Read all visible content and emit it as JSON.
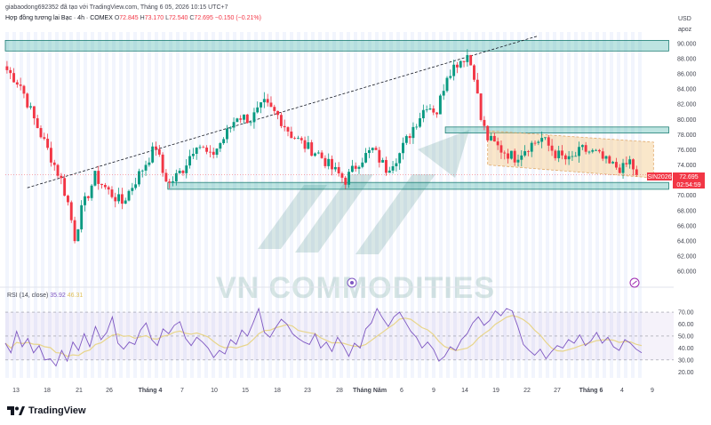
{
  "header": {
    "publisher_line": "giabaodong692352 đã tạo với TradingView.com, Tháng 6 05, 2026 10:15 UTC+7",
    "symbol_line": "Hợp đồng tương lai Bạc · 4h · COMEX",
    "ohlc": {
      "open_label": "O",
      "open": "72.845",
      "high_label": "H",
      "high": "73.170",
      "low_label": "L",
      "low": "72.540",
      "close_label": "C",
      "close": "72.695",
      "change": "−0.150 (−0.21%)"
    }
  },
  "axis": {
    "currency": "USD",
    "scale_mode": "apoz"
  },
  "last_price": {
    "symbol_tag": "SIN2026",
    "price": "72.695",
    "countdown": "02:54:59",
    "color": "#f23645"
  },
  "rsi_legend": {
    "label": "RSI (14, close)",
    "rsi_value": "35.92",
    "ma_value": "46.31"
  },
  "watermark": "VN COMMODITIES",
  "branding": "TradingView",
  "colors": {
    "up": "#089981",
    "down": "#f23645",
    "zone": "#26a69a",
    "channel": "#f5c98a",
    "rsi": "#7e57c2",
    "rsi_ma": "#e8d58a"
  },
  "chart_data": {
    "type": "candlestick",
    "timeframe": "4h",
    "price_ticks": [
      "90.000",
      "88.000",
      "86.000",
      "84.000",
      "82.000",
      "80.000",
      "78.000",
      "76.000",
      "74.000",
      "72.000",
      "70.000",
      "68.000",
      "66.000",
      "64.000",
      "62.000",
      "60.000"
    ],
    "ylim": [
      58.5,
      91.5
    ],
    "x_ticks": [
      {
        "label": "13",
        "bold": false
      },
      {
        "label": "18",
        "bold": false
      },
      {
        "label": "21",
        "bold": false
      },
      {
        "label": "26",
        "bold": false
      },
      {
        "label": "Tháng 4",
        "bold": true
      },
      {
        "label": "7",
        "bold": false
      },
      {
        "label": "10",
        "bold": false
      },
      {
        "label": "15",
        "bold": false
      },
      {
        "label": "18",
        "bold": false
      },
      {
        "label": "23",
        "bold": false
      },
      {
        "label": "28",
        "bold": false
      },
      {
        "label": "Tháng Năm",
        "bold": true
      },
      {
        "label": "6",
        "bold": false
      },
      {
        "label": "9",
        "bold": false
      },
      {
        "label": "14",
        "bold": false
      },
      {
        "label": "19",
        "bold": false
      },
      {
        "label": "22",
        "bold": false
      },
      {
        "label": "27",
        "bold": false
      },
      {
        "label": "Tháng 6",
        "bold": true
      },
      {
        "label": "4",
        "bold": false
      },
      {
        "label": "9",
        "bold": false
      }
    ],
    "close_series": [
      {
        "t": 0,
        "c": 86.5
      },
      {
        "t": 4,
        "c": 84.5
      },
      {
        "t": 8,
        "c": 80.0
      },
      {
        "t": 12,
        "c": 76.0
      },
      {
        "t": 16,
        "c": 72.0
      },
      {
        "t": 18,
        "c": 69.0
      },
      {
        "t": 20,
        "c": 64.5
      },
      {
        "t": 22,
        "c": 68.0
      },
      {
        "t": 26,
        "c": 72.5
      },
      {
        "t": 30,
        "c": 70.5
      },
      {
        "t": 34,
        "c": 69.0
      },
      {
        "t": 38,
        "c": 72.0
      },
      {
        "t": 42,
        "c": 75.0
      },
      {
        "t": 44,
        "c": 76.5
      },
      {
        "t": 46,
        "c": 73.0
      },
      {
        "t": 48,
        "c": 71.5
      },
      {
        "t": 52,
        "c": 73.5
      },
      {
        "t": 56,
        "c": 77.0
      },
      {
        "t": 60,
        "c": 75.0
      },
      {
        "t": 64,
        "c": 77.5
      },
      {
        "t": 68,
        "c": 80.5
      },
      {
        "t": 72,
        "c": 80.0
      },
      {
        "t": 76,
        "c": 82.0
      },
      {
        "t": 80,
        "c": 80.5
      },
      {
        "t": 84,
        "c": 78.0
      },
      {
        "t": 88,
        "c": 76.5
      },
      {
        "t": 92,
        "c": 75.5
      },
      {
        "t": 96,
        "c": 73.5
      },
      {
        "t": 100,
        "c": 72.0
      },
      {
        "t": 104,
        "c": 74.5
      },
      {
        "t": 108,
        "c": 76.0
      },
      {
        "t": 112,
        "c": 73.5
      },
      {
        "t": 116,
        "c": 75.5
      },
      {
        "t": 120,
        "c": 79.0
      },
      {
        "t": 124,
        "c": 82.0
      },
      {
        "t": 127,
        "c": 81.0
      },
      {
        "t": 130,
        "c": 86.0
      },
      {
        "t": 133,
        "c": 87.5
      },
      {
        "t": 136,
        "c": 88.5
      },
      {
        "t": 138,
        "c": 86.0
      },
      {
        "t": 140,
        "c": 80.0
      },
      {
        "t": 142,
        "c": 77.5
      },
      {
        "t": 146,
        "c": 76.0
      },
      {
        "t": 150,
        "c": 75.0
      },
      {
        "t": 154,
        "c": 76.5
      },
      {
        "t": 158,
        "c": 77.5
      },
      {
        "t": 162,
        "c": 75.5
      },
      {
        "t": 166,
        "c": 74.5
      },
      {
        "t": 170,
        "c": 76.0
      },
      {
        "t": 174,
        "c": 75.5
      },
      {
        "t": 178,
        "c": 74.0
      },
      {
        "t": 182,
        "c": 73.5
      },
      {
        "t": 184,
        "c": 74.5
      },
      {
        "t": 186,
        "c": 72.7
      }
    ],
    "zones": [
      {
        "low": 89.0,
        "high": 90.4,
        "t_start": 0,
        "t_end": 196
      },
      {
        "low": 78.2,
        "high": 79.0,
        "t_start": 130,
        "t_end": 196
      },
      {
        "low": 70.8,
        "high": 71.7,
        "t_start": 48,
        "t_end": 196
      }
    ],
    "channel": {
      "t_start": 142,
      "t_end": 191,
      "upper": [
        78.5,
        77.0
      ],
      "lower": [
        74.0,
        72.3
      ]
    },
    "trendline": {
      "t_start": 6,
      "t_end": 157,
      "p_start": 71.0,
      "p_end": 91.0
    },
    "rsi": {
      "ticks": [
        "70.00",
        "60.00",
        "50.00",
        "40.00",
        "30.00",
        "20.00"
      ],
      "ylim": [
        15,
        76
      ],
      "bands": [
        70,
        50,
        30
      ],
      "values": [
        44,
        36,
        54,
        41,
        48,
        36,
        42,
        30,
        31,
        25,
        38,
        29,
        45,
        38,
        52,
        41,
        58,
        47,
        53,
        66,
        44,
        39,
        45,
        43,
        55,
        61,
        47,
        42,
        56,
        52,
        59,
        62,
        48,
        42,
        49,
        45,
        40,
        32,
        38,
        35,
        47,
        43,
        55,
        50,
        61,
        73,
        53,
        49,
        57,
        64,
        60,
        52,
        48,
        45,
        43,
        52,
        40,
        45,
        37,
        49,
        42,
        33,
        44,
        40,
        56,
        61,
        73,
        65,
        58,
        66,
        70,
        62,
        54,
        49,
        40,
        45,
        39,
        29,
        33,
        41,
        38,
        47,
        52,
        61,
        66,
        59,
        63,
        71,
        67,
        73,
        71,
        58,
        43,
        38,
        34,
        39,
        31,
        37,
        42,
        40,
        47,
        44,
        51,
        42,
        46,
        53,
        44,
        49,
        41,
        38,
        47,
        44,
        39,
        36
      ]
    }
  }
}
